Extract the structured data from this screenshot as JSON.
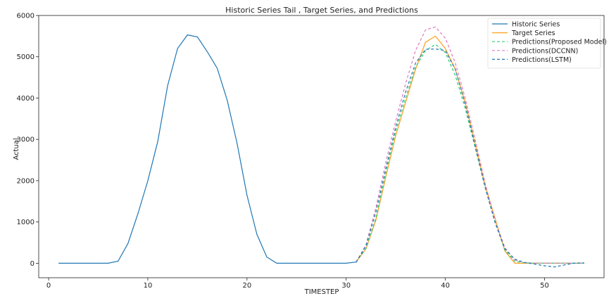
{
  "chart_data": {
    "type": "line",
    "title": "Historic Series Tail , Target Series, and Predictions",
    "xlabel": "TIMESTEP",
    "ylabel": "Actual",
    "xlim": [
      -1,
      56
    ],
    "ylim": [
      -350,
      6000
    ],
    "xticks": [
      0,
      10,
      20,
      30,
      40,
      50
    ],
    "yticks": [
      0,
      1000,
      2000,
      3000,
      4000,
      5000,
      6000
    ],
    "legend_position": "top-right",
    "grid": false,
    "series": [
      {
        "name": "Historic Series",
        "color": "#1f77b4",
        "style": "solid",
        "x": [
          1,
          2,
          3,
          4,
          5,
          6,
          7,
          8,
          9,
          10,
          11,
          12,
          13,
          14,
          15,
          16,
          17,
          18,
          19,
          20,
          21,
          22,
          23,
          24,
          25,
          26,
          27,
          28,
          29,
          30,
          31
        ],
        "y": [
          0,
          0,
          0,
          0,
          0,
          0,
          50,
          480,
          1200,
          2000,
          2950,
          4300,
          5200,
          5530,
          5480,
          5120,
          4720,
          3950,
          2900,
          1650,
          700,
          150,
          0,
          0,
          0,
          0,
          0,
          0,
          0,
          0,
          30
        ]
      },
      {
        "name": "Target Series",
        "color": "#ff9f1c",
        "style": "solid",
        "x": [
          31,
          32,
          33,
          34,
          35,
          36,
          37,
          38,
          39,
          40,
          41,
          42,
          43,
          44,
          45,
          46,
          47,
          48,
          49,
          50,
          51,
          52,
          53,
          54
        ],
        "y": [
          30,
          350,
          1050,
          2100,
          3100,
          3900,
          4700,
          5350,
          5500,
          5200,
          4700,
          3900,
          2900,
          1900,
          1100,
          300,
          0,
          0,
          0,
          0,
          0,
          0,
          0,
          0
        ]
      },
      {
        "name": "Predictions(Proposed Model)",
        "color": "#2ecc71",
        "style": "dashed",
        "x": [
          31,
          32,
          33,
          34,
          35,
          36,
          37,
          38,
          39,
          40,
          41,
          42,
          43,
          44,
          45,
          46,
          47,
          48,
          49,
          50,
          51,
          52,
          53,
          54
        ],
        "y": [
          40,
          360,
          1100,
          2200,
          3200,
          4000,
          4750,
          5150,
          5300,
          5100,
          4550,
          3750,
          2800,
          1850,
          1000,
          320,
          50,
          10,
          0,
          0,
          0,
          0,
          0,
          0
        ]
      },
      {
        "name": "Predictions(DCCNN)",
        "color": "#e377c2",
        "style": "dashed",
        "x": [
          31,
          32,
          33,
          34,
          35,
          36,
          37,
          38,
          39,
          40,
          41,
          42,
          43,
          44,
          45,
          46,
          47,
          48,
          49,
          50,
          51,
          52,
          53,
          54
        ],
        "y": [
          30,
          450,
          1350,
          2450,
          3450,
          4350,
          5150,
          5650,
          5720,
          5450,
          4850,
          4000,
          3000,
          1950,
          1050,
          380,
          80,
          20,
          0,
          0,
          0,
          0,
          0,
          0
        ]
      },
      {
        "name": "Predictions(LSTM)",
        "color": "#1f77b4",
        "style": "dashed",
        "x": [
          31,
          32,
          33,
          34,
          35,
          36,
          37,
          38,
          39,
          40,
          41,
          42,
          43,
          44,
          45,
          46,
          47,
          48,
          49,
          50,
          51,
          52,
          53,
          54
        ],
        "y": [
          20,
          420,
          1250,
          2300,
          3300,
          4150,
          4850,
          5180,
          5190,
          5150,
          4700,
          3850,
          2850,
          1850,
          1000,
          350,
          100,
          20,
          -20,
          -60,
          -90,
          -40,
          0,
          10
        ]
      }
    ]
  }
}
